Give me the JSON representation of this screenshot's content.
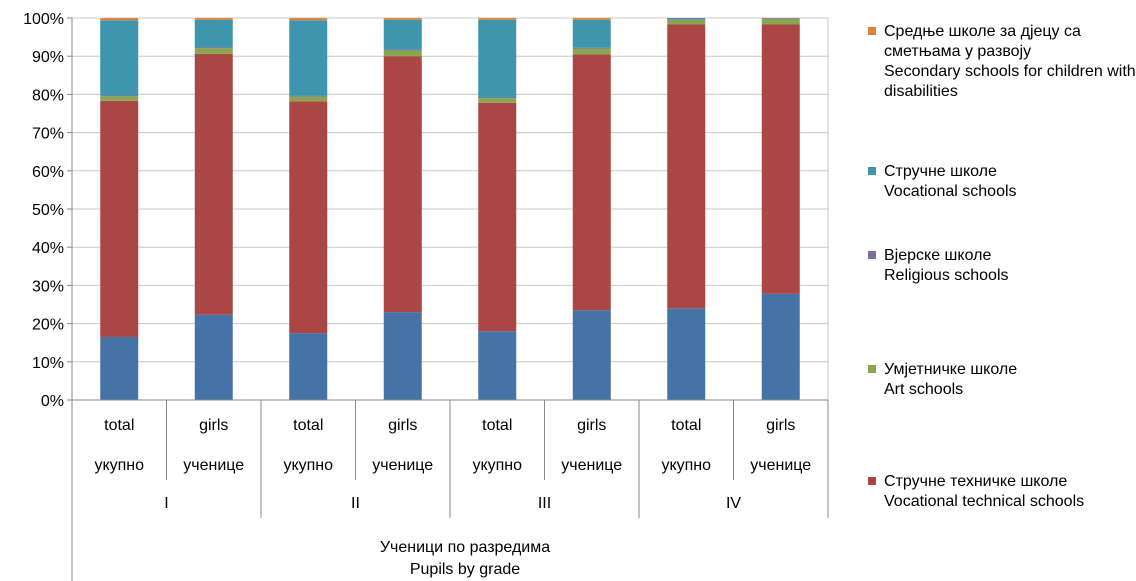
{
  "chart_data": {
    "type": "bar",
    "stacked": true,
    "normalized_percent": true,
    "title": "",
    "y_ticks": [
      "0%",
      "10%",
      "20%",
      "30%",
      "40%",
      "50%",
      "60%",
      "70%",
      "80%",
      "90%",
      "100%"
    ],
    "ylim": [
      0,
      100
    ],
    "grid": true,
    "legend_position": "right",
    "categories": [
      {
        "top": "total",
        "bottom": "укупно"
      },
      {
        "top": "girls",
        "bottom": "ученице"
      },
      {
        "top": "total",
        "bottom": "укупно"
      },
      {
        "top": "girls",
        "bottom": "ученице"
      },
      {
        "top": "total",
        "bottom": "укупно"
      },
      {
        "top": "girls",
        "bottom": "ученице"
      },
      {
        "top": "total",
        "bottom": "укупно"
      },
      {
        "top": "girls",
        "bottom": "ученице"
      }
    ],
    "groups": [
      "I",
      "II",
      "III",
      "IV"
    ],
    "xlabel": [
      "Ученици по разредима",
      "Pupils by grade"
    ],
    "series": [
      {
        "name": "",
        "color": "#4572A7",
        "values": [
          16.5,
          22.3,
          17.5,
          23.0,
          18.0,
          23.5,
          24.0,
          27.8
        ]
      },
      {
        "name": "Стручне техничке школе\nVocational technical schools",
        "color": "#AA4643",
        "values": [
          61.8,
          68.3,
          60.7,
          67.0,
          59.8,
          67.0,
          74.3,
          70.5
        ]
      },
      {
        "name": "Умјетничке школе\nArt schools",
        "color": "#89A54E",
        "values": [
          1.2,
          1.5,
          1.2,
          1.5,
          1.2,
          1.5,
          1.2,
          1.5
        ]
      },
      {
        "name": "Вјерске школе\nReligious schools",
        "color": "#80699B",
        "values": [
          0.2,
          0.2,
          0.2,
          0.2,
          0.2,
          0.2,
          0.2,
          0.2
        ]
      },
      {
        "name": "Стручне школе\nVocational schools",
        "color": "#3D96AE",
        "values": [
          19.7,
          7.2,
          19.8,
          7.8,
          20.3,
          7.3,
          0.3,
          0.0
        ]
      },
      {
        "name": "Средње школе за дјецу са сметњама у развоју\nSecondary schools for children with disabilities",
        "color": "#DB843D",
        "values": [
          0.6,
          0.5,
          0.6,
          0.5,
          0.5,
          0.5,
          0.0,
          0.0
        ]
      }
    ],
    "legend_order": [
      5,
      4,
      3,
      2,
      1
    ]
  }
}
